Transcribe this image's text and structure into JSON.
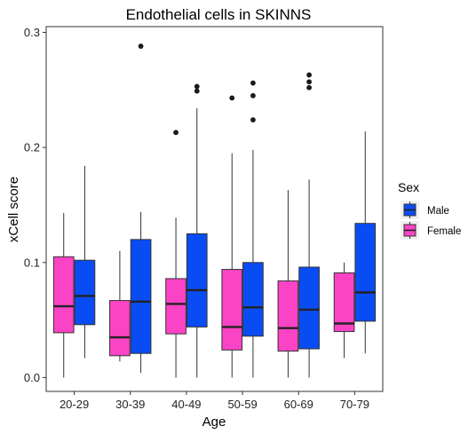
{
  "chart_data": {
    "type": "box",
    "title": "Endothelial cells in SKINNS",
    "xlabel": "Age",
    "ylabel": "xCell score",
    "ylim": [
      -0.012,
      0.305
    ],
    "yticks": [
      "0.0",
      "0.1",
      "0.2",
      "0.3"
    ],
    "ytick_values": [
      0.0,
      0.1,
      0.2,
      0.3
    ],
    "categories": [
      "20-29",
      "30-39",
      "40-49",
      "50-59",
      "60-69",
      "70-79"
    ],
    "legend": {
      "title": "Sex",
      "position": "right"
    },
    "grid": false,
    "series": [
      {
        "name": "Male",
        "color": "#0a4cf4",
        "boxes": [
          {
            "lower_whisker": 0.017,
            "q1": 0.046,
            "median": 0.071,
            "q3": 0.102,
            "upper_whisker": 0.184,
            "outliers": []
          },
          {
            "lower_whisker": 0.004,
            "q1": 0.021,
            "median": 0.066,
            "q3": 0.12,
            "upper_whisker": 0.144,
            "outliers": [
              0.288
            ]
          },
          {
            "lower_whisker": 0.0,
            "q1": 0.044,
            "median": 0.076,
            "q3": 0.125,
            "upper_whisker": 0.234,
            "outliers": [
              0.249,
              0.253
            ]
          },
          {
            "lower_whisker": 0.0,
            "q1": 0.036,
            "median": 0.061,
            "q3": 0.1,
            "upper_whisker": 0.198,
            "outliers": [
              0.224,
              0.245,
              0.256
            ]
          },
          {
            "lower_whisker": 0.0,
            "q1": 0.025,
            "median": 0.059,
            "q3": 0.096,
            "upper_whisker": 0.172,
            "outliers": [
              0.252,
              0.257,
              0.263
            ]
          },
          {
            "lower_whisker": 0.021,
            "q1": 0.049,
            "median": 0.074,
            "q3": 0.134,
            "upper_whisker": 0.214,
            "outliers": []
          }
        ]
      },
      {
        "name": "Female",
        "color": "#fa43c5",
        "boxes": [
          {
            "lower_whisker": 0.0,
            "q1": 0.039,
            "median": 0.062,
            "q3": 0.105,
            "upper_whisker": 0.143,
            "outliers": []
          },
          {
            "lower_whisker": 0.014,
            "q1": 0.019,
            "median": 0.035,
            "q3": 0.067,
            "upper_whisker": 0.11,
            "outliers": []
          },
          {
            "lower_whisker": 0.0,
            "q1": 0.038,
            "median": 0.064,
            "q3": 0.086,
            "upper_whisker": 0.139,
            "outliers": [
              0.213
            ]
          },
          {
            "lower_whisker": 0.0,
            "q1": 0.024,
            "median": 0.044,
            "q3": 0.094,
            "upper_whisker": 0.195,
            "outliers": [
              0.243
            ]
          },
          {
            "lower_whisker": 0.0,
            "q1": 0.023,
            "median": 0.043,
            "q3": 0.084,
            "upper_whisker": 0.163,
            "outliers": []
          },
          {
            "lower_whisker": 0.017,
            "q1": 0.04,
            "median": 0.047,
            "q3": 0.091,
            "upper_whisker": 0.1,
            "outliers": []
          }
        ]
      }
    ]
  }
}
